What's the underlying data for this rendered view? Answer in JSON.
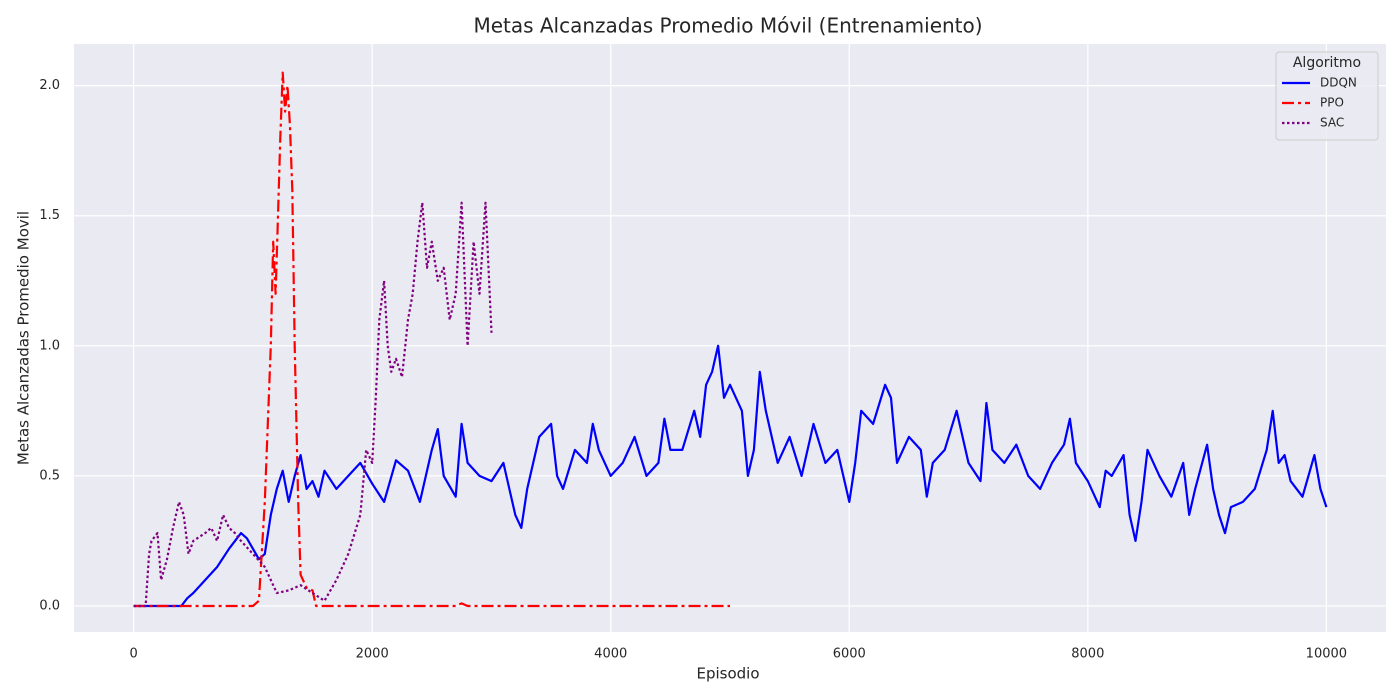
{
  "chart_data": {
    "type": "line",
    "title": "Metas Alcanzadas Promedio Móvil (Entrenamiento)",
    "x_label": "Episodio",
    "y_label": "Metas Alcanzadas Promedio Movil",
    "legend_title": "Algoritmo",
    "legend": "upper right",
    "grid": true,
    "xlim": [
      -500,
      10500
    ],
    "ylim": [
      -0.1,
      2.16
    ],
    "xticks": [
      0,
      2000,
      4000,
      6000,
      8000,
      10000
    ],
    "yticks": [
      {
        "value": 0,
        "label": "0.0"
      },
      {
        "value": 0.5,
        "label": "0.5"
      },
      {
        "value": 1,
        "label": "1.0"
      },
      {
        "value": 1.5,
        "label": "1.5"
      },
      {
        "value": 2,
        "label": "2.0"
      }
    ],
    "series": [
      {
        "name": "DDQN",
        "color": "#0000ff",
        "linestyle": "solid",
        "x": [
          0,
          400,
          450,
          500,
          600,
          700,
          800,
          900,
          950,
          1000,
          1050,
          1100,
          1150,
          1200,
          1250,
          1300,
          1350,
          1400,
          1450,
          1500,
          1550,
          1600,
          1700,
          1800,
          1900,
          2000,
          2100,
          2200,
          2300,
          2400,
          2500,
          2550,
          2600,
          2700,
          2750,
          2800,
          2900,
          3000,
          3100,
          3200,
          3250,
          3300,
          3400,
          3500,
          3550,
          3600,
          3700,
          3800,
          3850,
          3900,
          4000,
          4100,
          4200,
          4300,
          4400,
          4450,
          4500,
          4600,
          4700,
          4750,
          4800,
          4850,
          4900,
          4950,
          5000,
          5100,
          5150,
          5200,
          5250,
          5300,
          5400,
          5500,
          5600,
          5700,
          5800,
          5900,
          6000,
          6050,
          6100,
          6200,
          6300,
          6350,
          6400,
          6500,
          6600,
          6650,
          6700,
          6800,
          6900,
          7000,
          7100,
          7150,
          7200,
          7300,
          7400,
          7500,
          7600,
          7700,
          7800,
          7850,
          7900,
          8000,
          8100,
          8150,
          8200,
          8300,
          8350,
          8400,
          8450,
          8500,
          8600,
          8700,
          8800,
          8850,
          8900,
          9000,
          9050,
          9100,
          9150,
          9200,
          9300,
          9400,
          9500,
          9550,
          9600,
          9650,
          9700,
          9800,
          9900,
          9950,
          10000
        ],
        "values": [
          0,
          0,
          0.03,
          0.05,
          0.1,
          0.15,
          0.22,
          0.28,
          0.26,
          0.22,
          0.18,
          0.2,
          0.35,
          0.45,
          0.52,
          0.4,
          0.5,
          0.58,
          0.45,
          0.48,
          0.42,
          0.52,
          0.45,
          0.5,
          0.55,
          0.47,
          0.4,
          0.56,
          0.52,
          0.4,
          0.6,
          0.68,
          0.5,
          0.42,
          0.7,
          0.55,
          0.5,
          0.48,
          0.55,
          0.35,
          0.3,
          0.45,
          0.65,
          0.7,
          0.5,
          0.45,
          0.6,
          0.55,
          0.7,
          0.6,
          0.5,
          0.55,
          0.65,
          0.5,
          0.55,
          0.72,
          0.6,
          0.6,
          0.75,
          0.65,
          0.85,
          0.9,
          1.0,
          0.8,
          0.85,
          0.75,
          0.5,
          0.6,
          0.9,
          0.75,
          0.55,
          0.65,
          0.5,
          0.7,
          0.55,
          0.6,
          0.4,
          0.55,
          0.75,
          0.7,
          0.85,
          0.8,
          0.55,
          0.65,
          0.6,
          0.42,
          0.55,
          0.6,
          0.75,
          0.55,
          0.48,
          0.78,
          0.6,
          0.55,
          0.62,
          0.5,
          0.45,
          0.55,
          0.62,
          0.72,
          0.55,
          0.48,
          0.38,
          0.52,
          0.5,
          0.58,
          0.35,
          0.25,
          0.4,
          0.6,
          0.5,
          0.42,
          0.55,
          0.35,
          0.45,
          0.62,
          0.45,
          0.35,
          0.28,
          0.38,
          0.4,
          0.45,
          0.6,
          0.75,
          0.55,
          0.58,
          0.48,
          0.42,
          0.58,
          0.45,
          0.38
        ]
      },
      {
        "name": "PPO",
        "color": "#ff0000",
        "linestyle": "dashdot",
        "x": [
          0,
          1000,
          1050,
          1100,
          1150,
          1170,
          1190,
          1210,
          1230,
          1250,
          1270,
          1290,
          1310,
          1330,
          1350,
          1380,
          1400,
          1450,
          1500,
          1530,
          2700,
          2750,
          2800,
          5000
        ],
        "values": [
          0,
          0,
          0.02,
          0.4,
          1.0,
          1.4,
          1.2,
          1.5,
          1.8,
          2.05,
          1.9,
          2.0,
          1.85,
          1.6,
          1.0,
          0.4,
          0.12,
          0.07,
          0.06,
          0,
          0,
          0.01,
          0,
          0
        ]
      },
      {
        "name": "SAC",
        "color": "#800080",
        "linestyle": "dotted",
        "x": [
          0,
          100,
          130,
          150,
          200,
          230,
          280,
          330,
          380,
          420,
          460,
          500,
          600,
          650,
          700,
          750,
          800,
          850,
          900,
          1000,
          1100,
          1200,
          1300,
          1400,
          1500,
          1600,
          1700,
          1800,
          1900,
          1950,
          2000,
          2030,
          2060,
          2100,
          2130,
          2160,
          2200,
          2250,
          2300,
          2340,
          2380,
          2420,
          2460,
          2500,
          2550,
          2600,
          2650,
          2700,
          2750,
          2800,
          2850,
          2900,
          2950,
          3000
        ],
        "values": [
          0,
          0,
          0.2,
          0.25,
          0.28,
          0.1,
          0.18,
          0.3,
          0.4,
          0.35,
          0.2,
          0.25,
          0.28,
          0.3,
          0.25,
          0.35,
          0.3,
          0.28,
          0.25,
          0.2,
          0.15,
          0.05,
          0.06,
          0.08,
          0.05,
          0.02,
          0.1,
          0.2,
          0.35,
          0.6,
          0.55,
          0.8,
          1.1,
          1.25,
          1.0,
          0.9,
          0.95,
          0.88,
          1.1,
          1.2,
          1.4,
          1.55,
          1.3,
          1.4,
          1.25,
          1.3,
          1.1,
          1.2,
          1.55,
          1.0,
          1.4,
          1.2,
          1.55,
          1.05
        ]
      }
    ]
  }
}
